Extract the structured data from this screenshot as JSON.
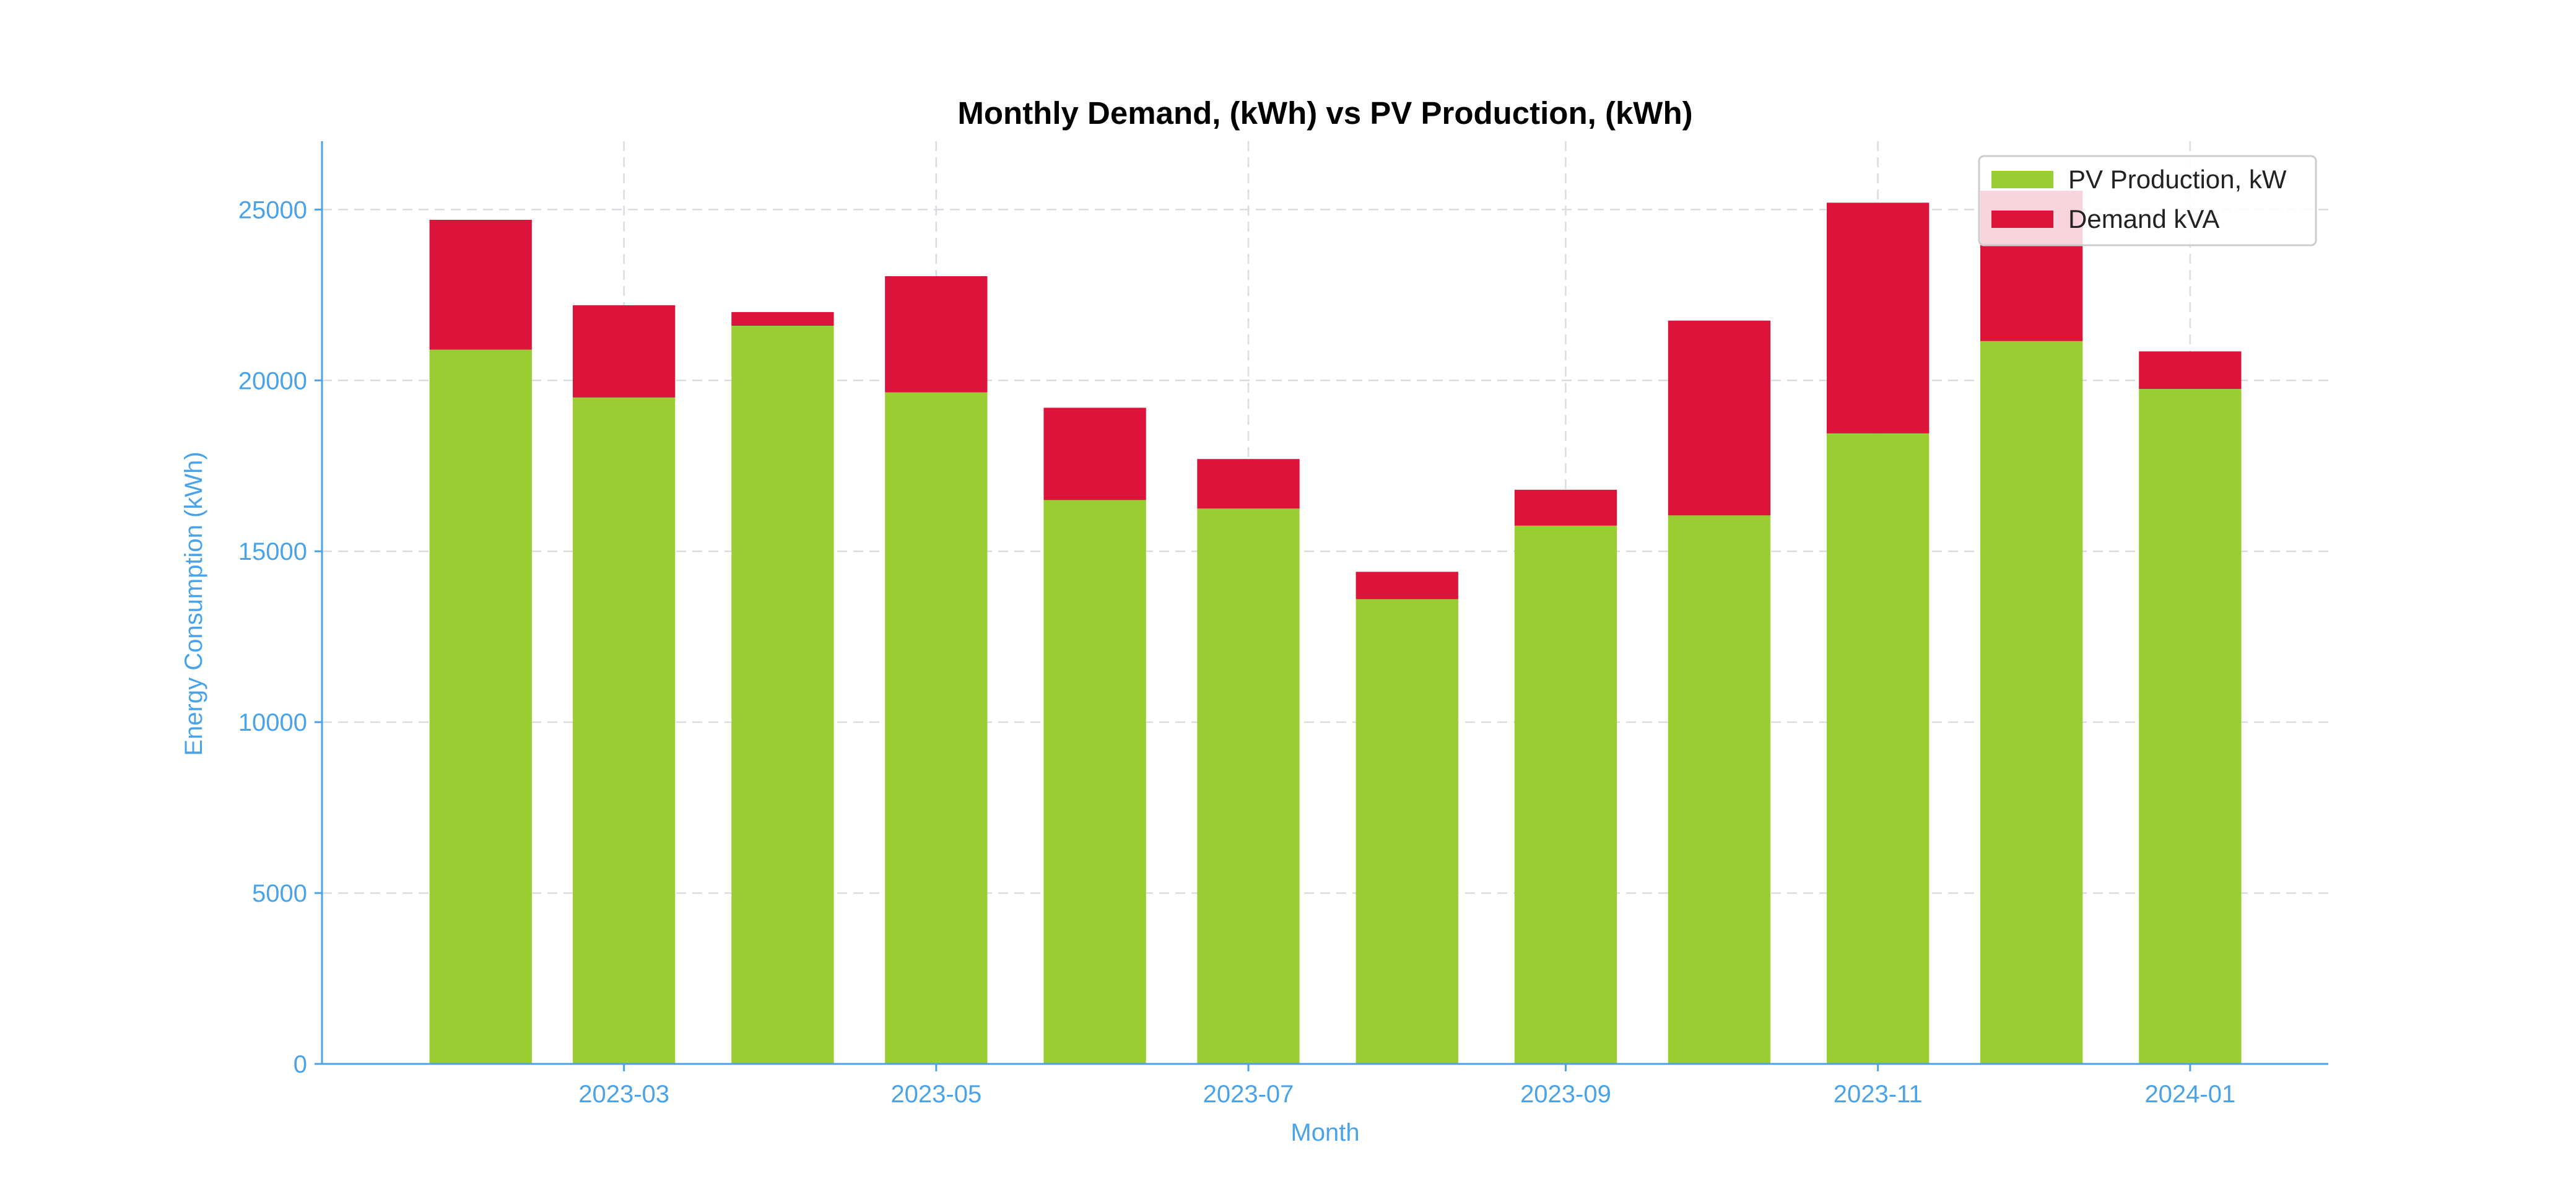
{
  "chart_data": {
    "type": "bar",
    "stacked": true,
    "title": "Monthly Demand, (kWh) vs PV Production, (kWh)",
    "xlabel": "Month",
    "ylabel": "Energy Consumption (kWh)",
    "ylim": [
      0,
      27000
    ],
    "yticks": [
      0,
      5000,
      10000,
      15000,
      20000,
      25000
    ],
    "x_dates": [
      "2023-02-01",
      "2023-03-01",
      "2023-04-01",
      "2023-05-01",
      "2023-06-01",
      "2023-07-01",
      "2023-08-01",
      "2023-09-01",
      "2023-10-01",
      "2023-11-01",
      "2023-12-01",
      "2024-01-01"
    ],
    "xtick_labels": [
      "2023-03",
      "2023-05",
      "2023-07",
      "2023-09",
      "2023-11",
      "2024-01"
    ],
    "xtick_dates": [
      "2023-03-01",
      "2023-05-01",
      "2023-07-01",
      "2023-09-01",
      "2023-11-01",
      "2024-01-01"
    ],
    "xlim": [
      "2023-01-01",
      "2024-01-28"
    ],
    "grid": true,
    "legend_position": "top-right",
    "series": [
      {
        "name": "PV Production, kW",
        "color": "#9acd32",
        "values": [
          20900,
          19500,
          21600,
          19650,
          16500,
          16250,
          13600,
          15750,
          16050,
          18450,
          21150,
          19750
        ]
      },
      {
        "name": "Demand kVA",
        "color": "#dc143c",
        "values": [
          3800,
          2700,
          400,
          3400,
          2700,
          1450,
          800,
          1050,
          5700,
          6750,
          4400,
          1100
        ]
      }
    ]
  }
}
